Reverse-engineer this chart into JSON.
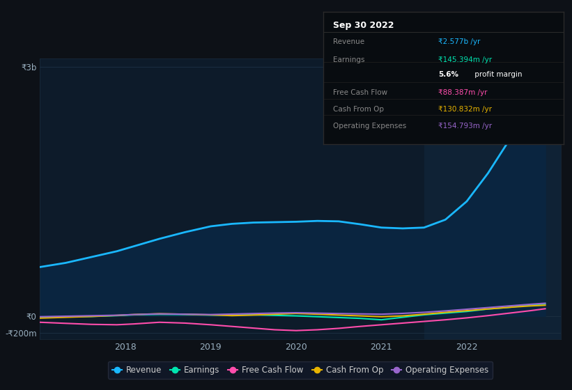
{
  "bg_color": "#0d1117",
  "plot_bg_color": "#0d1b2a",
  "highlight_bg": "#0f2235",
  "grid_color": "#1a2d3f",
  "title_box": {
    "date": "Sep 30 2022",
    "box_bg": "#080c10",
    "box_border": "#2a2a2a",
    "label_color": "#888888",
    "title_color": "#ffffff"
  },
  "x_ticks": [
    2018,
    2019,
    2020,
    2021,
    2022
  ],
  "y_ticks_val": [
    3000000000,
    0,
    -200000000
  ],
  "y_ticks_label": [
    "₹3b",
    "₹0",
    "-₹200m"
  ],
  "ylim": [
    -280000000,
    3100000000
  ],
  "xlim": [
    2017.0,
    2023.1
  ],
  "highlight_x_start": 2021.5,
  "highlight_x_end": 2023.1,
  "series": {
    "revenue": {
      "color": "#1ab8ff",
      "fill_color": "#0a2540",
      "label": "Revenue",
      "x": [
        2017.0,
        2017.3,
        2017.6,
        2017.9,
        2018.1,
        2018.4,
        2018.7,
        2019.0,
        2019.25,
        2019.5,
        2019.75,
        2020.0,
        2020.25,
        2020.5,
        2020.75,
        2021.0,
        2021.25,
        2021.5,
        2021.75,
        2022.0,
        2022.25,
        2022.5,
        2022.75,
        2022.92
      ],
      "y": [
        590000000,
        640000000,
        710000000,
        780000000,
        840000000,
        930000000,
        1010000000,
        1080000000,
        1110000000,
        1125000000,
        1130000000,
        1135000000,
        1145000000,
        1140000000,
        1105000000,
        1065000000,
        1055000000,
        1065000000,
        1160000000,
        1380000000,
        1720000000,
        2120000000,
        2460000000,
        2577000000
      ]
    },
    "earnings": {
      "color": "#00e5b0",
      "label": "Earnings",
      "x": [
        2017.0,
        2017.3,
        2017.6,
        2017.9,
        2018.1,
        2018.4,
        2018.7,
        2019.0,
        2019.25,
        2019.5,
        2019.75,
        2020.0,
        2020.25,
        2020.5,
        2020.75,
        2021.0,
        2021.25,
        2021.5,
        2021.75,
        2022.0,
        2022.25,
        2022.5,
        2022.75,
        2022.92
      ],
      "y": [
        -15000000,
        -10000000,
        -5000000,
        5000000,
        15000000,
        20000000,
        18000000,
        12000000,
        12000000,
        15000000,
        8000000,
        2000000,
        -8000000,
        -18000000,
        -28000000,
        -45000000,
        -15000000,
        15000000,
        35000000,
        55000000,
        85000000,
        105000000,
        135000000,
        145000000
      ]
    },
    "free_cash_flow": {
      "color": "#ff4dac",
      "label": "Free Cash Flow",
      "x": [
        2017.0,
        2017.3,
        2017.6,
        2017.9,
        2018.1,
        2018.4,
        2018.7,
        2019.0,
        2019.25,
        2019.5,
        2019.75,
        2020.0,
        2020.25,
        2020.5,
        2020.75,
        2021.0,
        2021.25,
        2021.5,
        2021.75,
        2022.0,
        2022.25,
        2022.5,
        2022.75,
        2022.92
      ],
      "y": [
        -75000000,
        -88000000,
        -100000000,
        -105000000,
        -95000000,
        -75000000,
        -85000000,
        -105000000,
        -125000000,
        -145000000,
        -165000000,
        -175000000,
        -165000000,
        -148000000,
        -125000000,
        -105000000,
        -85000000,
        -65000000,
        -45000000,
        -22000000,
        5000000,
        35000000,
        65000000,
        88000000
      ]
    },
    "cash_from_op": {
      "color": "#e8b400",
      "label": "Cash From Op",
      "x": [
        2017.0,
        2017.3,
        2017.6,
        2017.9,
        2018.1,
        2018.4,
        2018.7,
        2019.0,
        2019.25,
        2019.5,
        2019.75,
        2020.0,
        2020.25,
        2020.5,
        2020.75,
        2021.0,
        2021.25,
        2021.5,
        2021.75,
        2022.0,
        2022.25,
        2022.5,
        2022.75,
        2022.92
      ],
      "y": [
        -25000000,
        -15000000,
        -5000000,
        8000000,
        18000000,
        28000000,
        22000000,
        14000000,
        5000000,
        12000000,
        22000000,
        32000000,
        22000000,
        12000000,
        2000000,
        -8000000,
        2000000,
        22000000,
        45000000,
        65000000,
        85000000,
        105000000,
        122000000,
        130000000
      ]
    },
    "operating_expenses": {
      "color": "#9966cc",
      "label": "Operating Expenses",
      "x": [
        2017.0,
        2017.3,
        2017.6,
        2017.9,
        2018.1,
        2018.4,
        2018.7,
        2019.0,
        2019.25,
        2019.5,
        2019.75,
        2020.0,
        2020.25,
        2020.5,
        2020.75,
        2021.0,
        2021.25,
        2021.5,
        2021.75,
        2022.0,
        2022.25,
        2022.5,
        2022.75,
        2022.92
      ],
      "y": [
        -8000000,
        -2000000,
        4000000,
        10000000,
        18000000,
        26000000,
        22000000,
        18000000,
        24000000,
        30000000,
        36000000,
        40000000,
        35000000,
        30000000,
        26000000,
        22000000,
        32000000,
        45000000,
        62000000,
        82000000,
        102000000,
        122000000,
        142000000,
        154000000
      ]
    }
  },
  "legend": [
    {
      "label": "Revenue",
      "color": "#1ab8ff"
    },
    {
      "label": "Earnings",
      "color": "#00e5b0"
    },
    {
      "label": "Free Cash Flow",
      "color": "#ff4dac"
    },
    {
      "label": "Cash From Op",
      "color": "#e8b400"
    },
    {
      "label": "Operating Expenses",
      "color": "#9966cc"
    }
  ],
  "tooltip": {
    "rows": [
      {
        "label": "Revenue",
        "value": "₹2.577b /yr",
        "vcolor": "#1ab8ff"
      },
      {
        "label": "Earnings",
        "value": "₹145.394m /yr",
        "vcolor": "#00e5b0"
      },
      {
        "label": "",
        "value": "profit margin",
        "bold": "5.6%",
        "vcolor": "#ffffff"
      },
      {
        "label": "Free Cash Flow",
        "value": "₹88.387m /yr",
        "vcolor": "#ff4dac"
      },
      {
        "label": "Cash From Op",
        "value": "₹130.832m /yr",
        "vcolor": "#e8b400"
      },
      {
        "label": "Operating Expenses",
        "value": "₹154.793m /yr",
        "vcolor": "#9966cc"
      }
    ]
  }
}
